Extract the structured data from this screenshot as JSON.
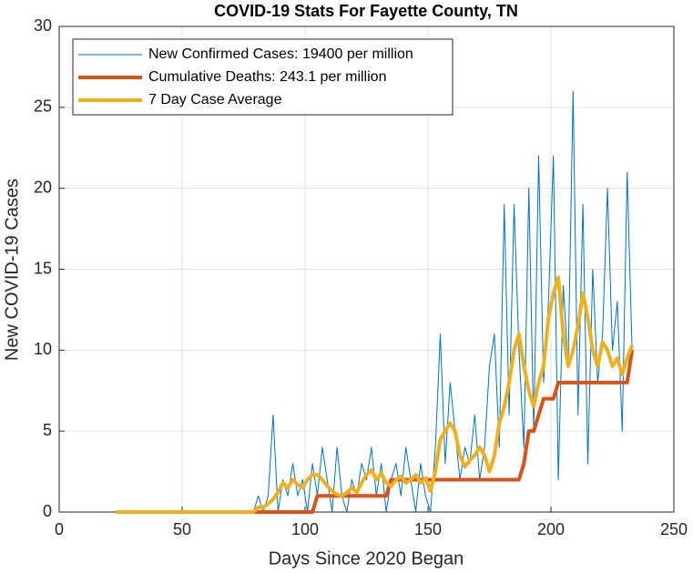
{
  "chart_data": {
    "type": "line",
    "title": "COVID-19 Stats For Fayette County, TN",
    "x_label": "Days Since 2020 Began",
    "y_label": "New COVID-19 Cases",
    "x": [
      23,
      25,
      27,
      29,
      31,
      33,
      35,
      37,
      39,
      41,
      43,
      45,
      47,
      49,
      51,
      53,
      55,
      57,
      59,
      61,
      63,
      65,
      67,
      69,
      71,
      73,
      75,
      77,
      79,
      81,
      83,
      85,
      87,
      89,
      91,
      93,
      95,
      97,
      99,
      101,
      103,
      105,
      107,
      109,
      111,
      113,
      115,
      117,
      119,
      121,
      123,
      125,
      127,
      129,
      131,
      133,
      135,
      137,
      139,
      141,
      143,
      145,
      147,
      149,
      151,
      153,
      155,
      157,
      159,
      161,
      163,
      165,
      167,
      169,
      171,
      173,
      175,
      177,
      179,
      181,
      183,
      185,
      187,
      189,
      191,
      193,
      195,
      197,
      199,
      201,
      203,
      205,
      207,
      209,
      211,
      213,
      215,
      217,
      219,
      221,
      223,
      225,
      227,
      229,
      231,
      233
    ],
    "series": [
      {
        "name": "New Confirmed Cases: 19400 per million",
        "color": "#0072bd",
        "width": 1,
        "values": [
          0,
          0,
          0,
          0,
          0,
          0,
          0,
          0,
          0,
          0,
          0,
          0,
          0,
          0,
          0,
          0,
          0,
          0,
          0,
          0,
          0,
          0,
          0,
          0,
          0,
          0,
          0,
          0,
          0,
          1,
          0,
          1,
          6,
          0,
          2,
          1,
          3,
          1,
          2,
          0,
          3,
          1,
          4,
          2,
          0,
          4,
          1,
          0,
          2,
          1,
          3,
          2,
          4,
          1,
          3,
          0,
          2,
          3,
          1,
          4,
          2,
          0,
          3,
          1,
          0,
          4,
          11,
          3,
          8,
          5,
          2,
          4,
          3,
          6,
          2,
          4,
          9,
          11,
          4,
          19,
          6,
          19,
          10,
          4,
          20,
          5,
          22,
          8,
          13,
          22,
          2,
          14,
          9,
          26,
          6,
          19,
          3,
          15,
          8,
          11,
          20,
          10,
          13,
          5,
          21,
          10
        ]
      },
      {
        "name": "Cumulative Deaths: 243.1 per million",
        "color": "#d95319",
        "width": 4,
        "values": [
          0,
          0,
          0,
          0,
          0,
          0,
          0,
          0,
          0,
          0,
          0,
          0,
          0,
          0,
          0,
          0,
          0,
          0,
          0,
          0,
          0,
          0,
          0,
          0,
          0,
          0,
          0,
          0,
          0,
          0,
          0,
          0,
          0,
          0,
          0,
          0,
          0,
          0,
          0,
          0,
          0,
          1,
          1,
          1,
          1,
          1,
          1,
          1,
          1,
          1,
          1,
          1,
          1,
          1,
          1,
          1,
          2,
          2,
          2,
          2,
          2,
          2,
          2,
          2,
          2,
          2,
          2,
          2,
          2,
          2,
          2,
          2,
          2,
          2,
          2,
          2,
          2,
          2,
          2,
          2,
          2,
          2,
          2,
          3,
          5,
          5,
          6,
          7,
          7,
          7,
          8,
          8,
          8,
          8,
          8,
          8,
          8,
          8,
          8,
          8,
          8,
          8,
          8,
          8,
          8,
          10
        ]
      },
      {
        "name": "7 Day Case Average",
        "color": "#edb120",
        "width": 4,
        "values": [
          0,
          0,
          0,
          0,
          0,
          0,
          0,
          0,
          0,
          0,
          0,
          0,
          0,
          0,
          0,
          0,
          0,
          0,
          0,
          0,
          0,
          0,
          0,
          0,
          0,
          0,
          0,
          0,
          0,
          0.3,
          0.3,
          0.5,
          0.8,
          1.2,
          1.8,
          1.5,
          2,
          1.7,
          1.5,
          2,
          2.3,
          2.3,
          2,
          1.6,
          1.3,
          1.1,
          1,
          1.2,
          1.5,
          1.2,
          1.8,
          2.3,
          2.6,
          2,
          2.4,
          1.8,
          1.6,
          2,
          2.2,
          1.8,
          2,
          2.3,
          1.8,
          2.1,
          1.3,
          2.5,
          4.5,
          5,
          5.5,
          5,
          3.5,
          2.8,
          3.2,
          3.5,
          4,
          3.5,
          2.5,
          3.5,
          5.5,
          6.5,
          8,
          10,
          11,
          9,
          7.5,
          6.5,
          8,
          9,
          12,
          13.5,
          14.5,
          11,
          9,
          10,
          11.5,
          13.5,
          12,
          10,
          9,
          10.5,
          10,
          9,
          9.5,
          8.5,
          9.5,
          10.3
        ]
      }
    ],
    "xlim": [
      0,
      250
    ],
    "xticks": [
      0,
      50,
      100,
      150,
      200,
      250
    ],
    "ylim": [
      0,
      30
    ],
    "yticks": [
      0,
      5,
      10,
      15,
      20,
      25,
      30
    ],
    "grid": true,
    "legend": "upper left"
  }
}
